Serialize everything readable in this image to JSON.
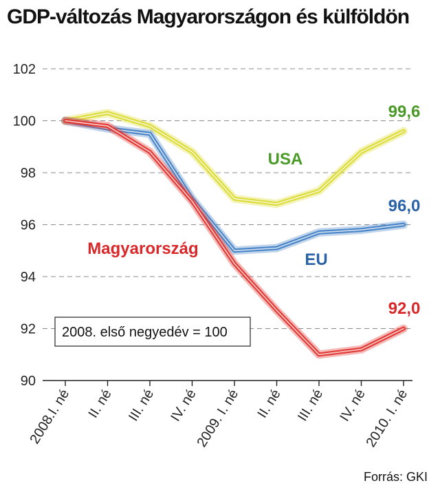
{
  "chart_data": {
    "type": "line",
    "title": "GDP-változás Magyarországon és külföldön",
    "categories": [
      "2008.I. né",
      "II. né",
      "III. né",
      "IV. né",
      "2009. I. né",
      "II. né",
      "III. né",
      "IV. né",
      "2010. I. né"
    ],
    "ylim": [
      90,
      102
    ],
    "yticks": [
      90,
      92,
      94,
      96,
      98,
      100,
      102
    ],
    "grid": true,
    "series": [
      {
        "name": "USA",
        "color": "#dcdc3a",
        "values": [
          100.0,
          100.3,
          99.8,
          98.8,
          97.0,
          96.8,
          97.3,
          98.8,
          99.6
        ],
        "end_label": "99,6",
        "label_color": "#4a9a28"
      },
      {
        "name": "EU",
        "color": "#4a86c8",
        "values": [
          100.0,
          99.7,
          99.5,
          97.0,
          95.0,
          95.1,
          95.7,
          95.8,
          96.0
        ],
        "end_label": "96,0",
        "label_color": "#2a62a8"
      },
      {
        "name": "Magyarország",
        "color": "#e23a35",
        "values": [
          100.0,
          99.8,
          98.8,
          96.9,
          94.5,
          92.7,
          91.0,
          91.2,
          92.0
        ],
        "end_label": "92,0",
        "label_color": "#d8282a"
      }
    ],
    "note": "2008. első negyedév = 100",
    "source": "Forrás: GKI"
  }
}
